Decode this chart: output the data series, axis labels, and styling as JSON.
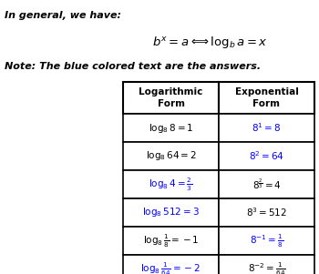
{
  "title": "In general, we have:",
  "note": "Note: The blue colored text are the answers.",
  "black": "#000000",
  "blue": "#0000ff",
  "bg": "#ffffff",
  "col_headers": [
    "Logarithmic\nForm",
    "Exponential\nForm"
  ],
  "rows": [
    {
      "log": "$\\log_8 8 = 1$",
      "log_blue": false,
      "exp": "$8^1 = 8$",
      "exp_blue": true
    },
    {
      "log": "$\\log_8 64 = 2$",
      "log_blue": false,
      "exp": "$8^2 = 64$",
      "exp_blue": true
    },
    {
      "log": "$\\log_8 4 = \\frac{2}{3}$",
      "log_blue": true,
      "exp": "$8^{\\frac{2}{3}} = 4$",
      "exp_blue": false
    },
    {
      "log": "$\\log_8 512 = 3$",
      "log_blue": true,
      "exp": "$8^3 = 512$",
      "exp_blue": false
    },
    {
      "log": "$\\log_8 \\frac{1}{8} = -1$",
      "log_blue": false,
      "exp": "$8^{-1} = \\frac{1}{8}$",
      "exp_blue": true
    },
    {
      "log": "$\\log_8 \\frac{1}{64} = -2$",
      "log_blue": true,
      "exp": "$8^{-2} = \\frac{1}{64}$",
      "exp_blue": false
    }
  ]
}
